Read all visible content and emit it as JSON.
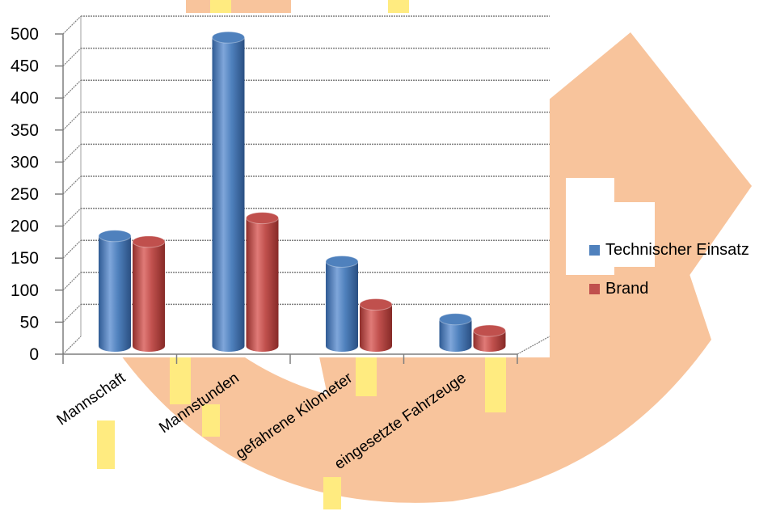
{
  "chart_data": {
    "type": "bar",
    "title": "",
    "xlabel": "",
    "ylabel": "",
    "ylim": [
      0,
      500
    ],
    "yticks": [
      0,
      50,
      100,
      150,
      200,
      250,
      300,
      350,
      400,
      450,
      500
    ],
    "categories": [
      "Mannschaft",
      "Mannstunden",
      "gefahrene Kilometer",
      "eingesetzte Fahrzeuge"
    ],
    "series": [
      {
        "name": "Technischer Einsatz",
        "color": "#4F81BD",
        "values": [
          172,
          482,
          132,
          42
        ]
      },
      {
        "name": "Brand",
        "color": "#C0504D",
        "values": [
          163,
          200,
          65,
          24
        ]
      }
    ],
    "legend_position": "right",
    "grid": true,
    "style": "3d-cylinder"
  },
  "background": {
    "watermark_color": "#F8C49C",
    "accent_color": "#FFEB80"
  }
}
